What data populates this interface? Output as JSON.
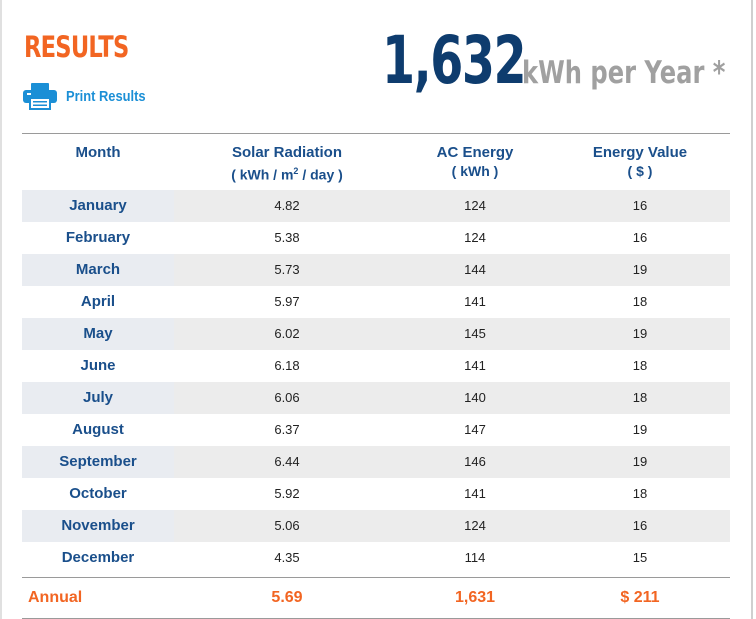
{
  "header": {
    "title": "RESULTS",
    "print_label": "Print Results",
    "total_value": "1,632",
    "total_unit": "kWh per Year *"
  },
  "table": {
    "columns": [
      {
        "line1": "Month",
        "line2": ""
      },
      {
        "line1": "Solar Radiation",
        "line2_pre": "( kWh / m",
        "line2_sup": "2",
        "line2_post": " / day )"
      },
      {
        "line1": "AC Energy",
        "line2": "( kWh )"
      },
      {
        "line1": "Energy Value",
        "line2": "( $ )"
      }
    ],
    "rows": [
      {
        "month": "January",
        "solar": "4.82",
        "ac": "124",
        "value": "16"
      },
      {
        "month": "February",
        "solar": "5.38",
        "ac": "124",
        "value": "16"
      },
      {
        "month": "March",
        "solar": "5.73",
        "ac": "144",
        "value": "19"
      },
      {
        "month": "April",
        "solar": "5.97",
        "ac": "141",
        "value": "18"
      },
      {
        "month": "May",
        "solar": "6.02",
        "ac": "145",
        "value": "19"
      },
      {
        "month": "June",
        "solar": "6.18",
        "ac": "141",
        "value": "18"
      },
      {
        "month": "July",
        "solar": "6.06",
        "ac": "140",
        "value": "18"
      },
      {
        "month": "August",
        "solar": "6.37",
        "ac": "147",
        "value": "19"
      },
      {
        "month": "September",
        "solar": "6.44",
        "ac": "146",
        "value": "19"
      },
      {
        "month": "October",
        "solar": "5.92",
        "ac": "141",
        "value": "18"
      },
      {
        "month": "November",
        "solar": "5.06",
        "ac": "124",
        "value": "16"
      },
      {
        "month": "December",
        "solar": "4.35",
        "ac": "114",
        "value": "15"
      }
    ],
    "annual": {
      "label": "Annual",
      "solar": "5.69",
      "ac": "1,631",
      "value": "$ 211"
    }
  },
  "colors": {
    "accent_orange": "#f26522",
    "navy": "#0e3c6e",
    "link_blue": "#1b8fd6",
    "row_shade": "#ececec"
  },
  "icons": {
    "print": "printer-icon"
  }
}
